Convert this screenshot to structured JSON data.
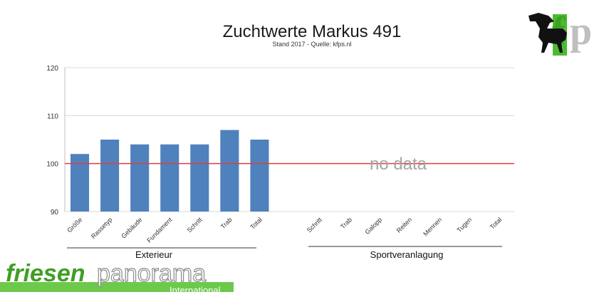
{
  "chart_data": {
    "type": "bar",
    "title": "Zuchtwerte Markus 491",
    "subtitle": "Stand 2017 - Quelle: kfps.nl",
    "ylim": [
      90,
      120
    ],
    "yticks": [
      "90",
      "100",
      "110",
      "120"
    ],
    "reference_line": 100,
    "grid": true,
    "colors": {
      "bar": "#4f81bd",
      "reference": "#e0403a",
      "grid": "#d9d9d9"
    },
    "groups": [
      {
        "label": "Exterieur",
        "categories": [
          "Größe",
          "Rassetyp",
          "Gebäude",
          "Fundament",
          "Schritt",
          "Trab",
          "Total"
        ],
        "values": [
          102,
          105,
          104,
          104,
          104,
          107,
          105
        ]
      },
      {
        "label": "Sportveranlagung",
        "categories": [
          "Schritt",
          "Trab",
          "Galopp",
          "Reiten",
          "Mennen",
          "Tugen",
          "Total"
        ],
        "values": [
          null,
          null,
          null,
          null,
          null,
          null,
          null
        ]
      }
    ],
    "annotation": "no data"
  },
  "branding": {
    "watermark_bold": "friesen",
    "watermark_light": "panorama",
    "watermark_sub": "International",
    "logo_letters": [
      "f",
      "p"
    ],
    "logo_icon": "horse-silhouette-icon",
    "colors": {
      "green": "#4dbb2f",
      "gray": "#8c8c8c"
    }
  }
}
